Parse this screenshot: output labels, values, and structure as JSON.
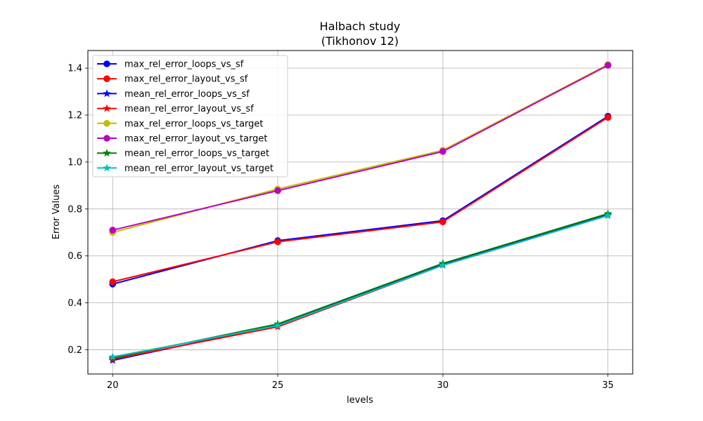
{
  "chart_data": {
    "type": "line",
    "title_line1": "Halbach study",
    "title_line2": "(Tikhonov 12)",
    "xlabel": "levels",
    "ylabel": "Error Values",
    "x": [
      20,
      25,
      30,
      35
    ],
    "x_ticks": [
      "20",
      "25",
      "30",
      "35"
    ],
    "y_ticks": [
      "0.2",
      "0.4",
      "0.6",
      "0.8",
      "1.0",
      "1.2",
      "1.4"
    ],
    "xlim": [
      19.25,
      35.75
    ],
    "ylim": [
      0.097,
      1.475
    ],
    "grid": true,
    "legend_position": "top-left",
    "series": [
      {
        "name": "max_rel_error_loops_vs_sf",
        "values": [
          0.48,
          0.665,
          0.75,
          1.195
        ],
        "color": "#0000ff",
        "marker": "circle"
      },
      {
        "name": "max_rel_error_layout_vs_sf",
        "values": [
          0.49,
          0.66,
          0.745,
          1.19
        ],
        "color": "#ff0000",
        "marker": "circle"
      },
      {
        "name": "mean_rel_error_loops_vs_sf",
        "values": [
          0.155,
          0.305,
          0.565,
          0.775
        ],
        "color": "#0000ff",
        "marker": "star"
      },
      {
        "name": "mean_rel_error_layout_vs_sf",
        "values": [
          0.16,
          0.298,
          0.56,
          0.772
        ],
        "color": "#ff0000",
        "marker": "star"
      },
      {
        "name": "max_rel_error_loops_vs_target",
        "values": [
          0.7,
          0.885,
          1.05,
          1.415
        ],
        "color": "#bfbf00",
        "marker": "circle"
      },
      {
        "name": "max_rel_error_layout_vs_target",
        "values": [
          0.71,
          0.878,
          1.045,
          1.412
        ],
        "color": "#bf00bf",
        "marker": "circle"
      },
      {
        "name": "mean_rel_error_loops_vs_target",
        "values": [
          0.165,
          0.31,
          0.568,
          0.78
        ],
        "color": "#008000",
        "marker": "star"
      },
      {
        "name": "mean_rel_error_layout_vs_target",
        "values": [
          0.17,
          0.303,
          0.56,
          0.772
        ],
        "color": "#00bfbf",
        "marker": "star"
      }
    ]
  }
}
